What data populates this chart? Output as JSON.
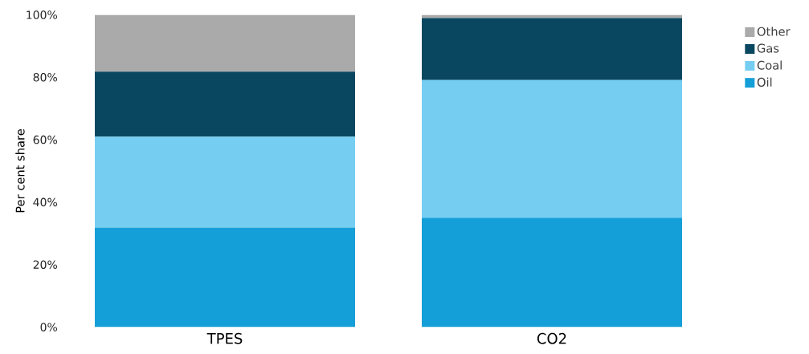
{
  "chart_data": {
    "type": "bar",
    "stacked": true,
    "ylabel": "Per cent share",
    "categories": [
      "TPES",
      "CO2"
    ],
    "series": [
      {
        "name": "Oil",
        "color": "#159fd8",
        "values": [
          31.9,
          35
        ]
      },
      {
        "name": "Coal",
        "color": "#75cef2",
        "values": [
          29.1,
          44.1
        ]
      },
      {
        "name": "Gas",
        "color": "#08475f",
        "values": [
          20.8,
          19.9
        ]
      },
      {
        "name": "Other",
        "color": "#aaaaab",
        "values": [
          18.2,
          1.0
        ]
      }
    ],
    "ylim": [
      0,
      100
    ],
    "yticks": [
      {
        "value": 0,
        "label": "0%"
      },
      {
        "value": 20,
        "label": "20%"
      },
      {
        "value": 40,
        "label": "40%"
      },
      {
        "value": 60,
        "label": "60%"
      },
      {
        "value": 80,
        "label": "80%"
      },
      {
        "value": 100,
        "label": "100%"
      }
    ],
    "grid": false,
    "legend": "top right"
  }
}
